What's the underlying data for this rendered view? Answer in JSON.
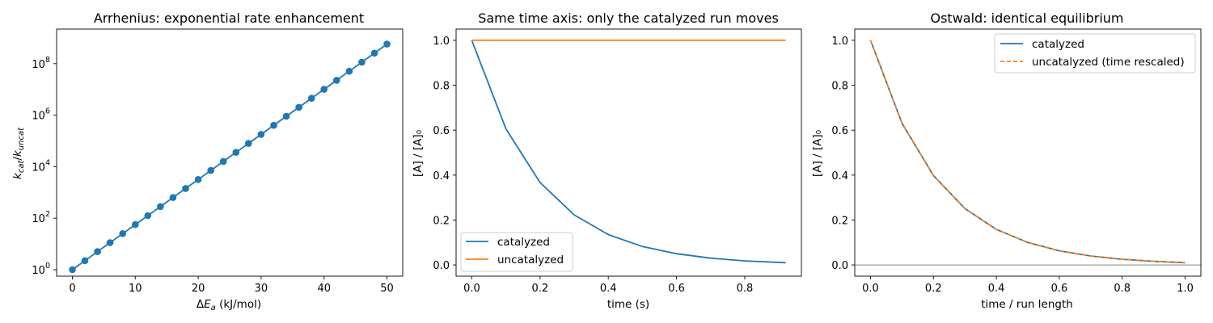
{
  "colors": {
    "blue": "#1f77b4",
    "orange": "#ff7f0e",
    "ref_line": "#808080"
  },
  "chart_data": [
    {
      "type": "line",
      "title": "Arrhenius: exponential rate enhancement",
      "xlabel": "ΔE_a (kJ/mol)",
      "ylabel": "k_cat/k_uncat",
      "yscale": "log",
      "xlim": [
        -2.5,
        52.5
      ],
      "ylim": [
        0.56,
        2200000000.0
      ],
      "xticks": [
        0,
        10,
        20,
        30,
        40,
        50
      ],
      "xtick_labels": [
        "0",
        "10",
        "20",
        "30",
        "40",
        "50"
      ],
      "yticks": [
        1,
        100,
        10000,
        1000000,
        100000000
      ],
      "ytick_labels": [
        "10",
        "10",
        "10",
        "10",
        "10"
      ],
      "ytick_exps": [
        "0",
        "2",
        "4",
        "6",
        "8"
      ],
      "markers": true,
      "grid": false,
      "series": [
        {
          "color": "#1f77b4",
          "x": [
            0,
            2,
            4,
            6,
            8,
            10,
            12,
            14,
            16,
            18,
            20,
            22,
            24,
            26,
            28,
            30,
            32,
            34,
            36,
            38,
            40,
            42,
            44,
            46,
            48,
            50
          ],
          "y": [
            1,
            2.24,
            5.02,
            11.2,
            25.2,
            56.4,
            126,
            283,
            634,
            1420,
            3180,
            7130,
            15970,
            35800,
            80200,
            180000,
            403000,
            902000,
            2020000,
            4530000,
            10100000,
            22700000,
            50900000,
            114000000,
            256000000,
            573000000
          ]
        }
      ]
    },
    {
      "type": "line",
      "title": "Same time axis: only the catalyzed run moves",
      "xlabel": "time (s)",
      "ylabel": "[A] / [A]₀",
      "xlim": [
        -0.046,
        0.966
      ],
      "ylim": [
        -0.05,
        1.05
      ],
      "xticks": [
        0,
        0.2,
        0.4,
        0.6,
        0.8
      ],
      "xtick_labels": [
        "0.0",
        "0.2",
        "0.4",
        "0.6",
        "0.8"
      ],
      "yticks": [
        0,
        0.2,
        0.4,
        0.6,
        0.8,
        1.0
      ],
      "ytick_labels": [
        "0.0",
        "0.2",
        "0.4",
        "0.6",
        "0.8",
        "1.0"
      ],
      "grid": false,
      "legend": "lower-left",
      "series": [
        {
          "name": "catalyzed",
          "color": "#1f77b4",
          "x": [
            0,
            0.1,
            0.2,
            0.3,
            0.4,
            0.5,
            0.6,
            0.7,
            0.8,
            0.92
          ],
          "y": [
            1.0,
            0.606,
            0.367,
            0.223,
            0.135,
            0.082,
            0.05,
            0.03,
            0.018,
            0.01
          ]
        },
        {
          "name": "uncatalyzed",
          "color": "#ff7f0e",
          "x": [
            0,
            0.92
          ],
          "y": [
            1.0,
            1.0
          ]
        }
      ]
    },
    {
      "type": "line",
      "title": "Ostwald: identical equilibrium",
      "xlabel": "time / run length",
      "ylabel": "[A] / [A]₀",
      "xlim": [
        -0.05,
        1.05
      ],
      "ylim": [
        -0.05,
        1.05
      ],
      "xticks": [
        0,
        0.2,
        0.4,
        0.6,
        0.8,
        1.0
      ],
      "xtick_labels": [
        "0.0",
        "0.2",
        "0.4",
        "0.6",
        "0.8",
        "1.0"
      ],
      "yticks": [
        0,
        0.2,
        0.4,
        0.6,
        0.8,
        1.0
      ],
      "ytick_labels": [
        "0.0",
        "0.2",
        "0.4",
        "0.6",
        "0.8",
        "1.0"
      ],
      "grid": false,
      "legend": "upper-right",
      "hline": 0,
      "series": [
        {
          "name": "catalyzed",
          "color": "#1f77b4",
          "x": [
            0,
            0.1,
            0.2,
            0.3,
            0.4,
            0.5,
            0.6,
            0.7,
            0.8,
            0.9,
            1.0
          ],
          "y": [
            1.0,
            0.631,
            0.398,
            0.251,
            0.158,
            0.1,
            0.063,
            0.04,
            0.025,
            0.016,
            0.01
          ]
        },
        {
          "name": "uncatalyzed (time rescaled)",
          "color": "#ff7f0e",
          "dashed": true,
          "x": [
            0,
            0.1,
            0.2,
            0.3,
            0.4,
            0.5,
            0.6,
            0.7,
            0.8,
            0.9,
            1.0
          ],
          "y": [
            1.0,
            0.631,
            0.398,
            0.251,
            0.158,
            0.1,
            0.063,
            0.04,
            0.025,
            0.016,
            0.01
          ]
        }
      ]
    }
  ]
}
